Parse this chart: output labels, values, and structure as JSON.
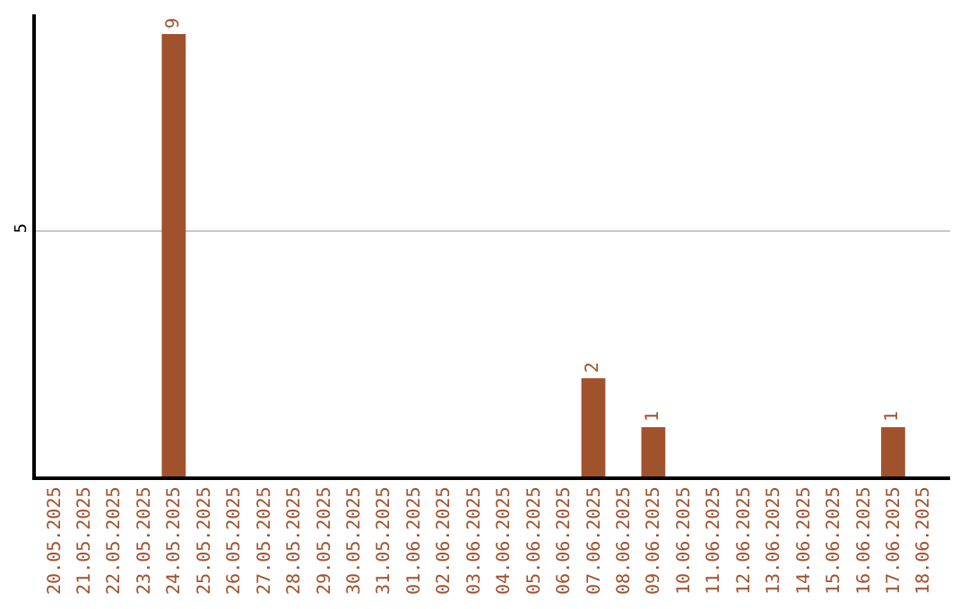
{
  "chart_data": {
    "type": "bar",
    "categories": [
      "20.05.2025",
      "21.05.2025",
      "22.05.2025",
      "23.05.2025",
      "24.05.2025",
      "25.05.2025",
      "26.05.2025",
      "27.05.2025",
      "28.05.2025",
      "29.05.2025",
      "30.05.2025",
      "31.05.2025",
      "01.06.2025",
      "02.06.2025",
      "03.06.2025",
      "04.06.2025",
      "05.06.2025",
      "06.06.2025",
      "07.06.2025",
      "08.06.2025",
      "09.06.2025",
      "10.06.2025",
      "11.06.2025",
      "12.06.2025",
      "13.06.2025",
      "14.06.2025",
      "15.06.2025",
      "16.06.2025",
      "17.06.2025",
      "18.06.2025"
    ],
    "values": [
      0,
      0,
      0,
      0,
      9,
      0,
      0,
      0,
      0,
      0,
      0,
      0,
      0,
      0,
      0,
      0,
      0,
      0,
      2,
      0,
      1,
      0,
      0,
      0,
      0,
      0,
      0,
      0,
      1,
      0
    ],
    "value_labels": [
      null,
      null,
      null,
      null,
      "9",
      null,
      null,
      null,
      null,
      null,
      null,
      null,
      null,
      null,
      null,
      null,
      null,
      null,
      "2",
      null,
      "1",
      null,
      null,
      null,
      null,
      null,
      null,
      null,
      "1",
      null
    ],
    "color": "#a0522d",
    "ylim": [
      0,
      9.4
    ],
    "yticks": [
      5
    ],
    "grid": "y",
    "legend": false
  }
}
